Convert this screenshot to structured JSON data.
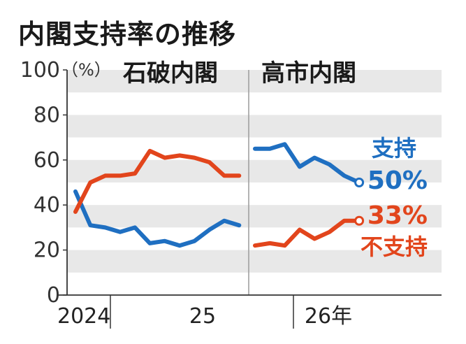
{
  "title": "内閣支持率の推移",
  "chart_data": {
    "type": "line",
    "unit": "（%）",
    "ylim": [
      0,
      100
    ],
    "y_ticks": [
      "0",
      "20",
      "40",
      "60",
      "80",
      "100"
    ],
    "x_labels": [
      "2024",
      "25",
      "26年"
    ],
    "periods": [
      "石破内閣",
      "高市内閣"
    ],
    "colors": {
      "support": "#1f6fc1",
      "oppose": "#e2451c",
      "band": "#e8e8e8"
    },
    "series": [
      {
        "name": "支持",
        "color": "#1f6fc1",
        "ishiba": [
          46,
          31,
          30,
          28,
          30,
          23,
          24,
          22,
          24,
          29,
          33,
          31
        ],
        "takaichi": [
          65,
          65,
          67,
          57,
          61,
          58,
          53,
          50
        ]
      },
      {
        "name": "不支持",
        "color": "#e2451c",
        "ishiba": [
          37,
          50,
          53,
          53,
          54,
          64,
          61,
          62,
          61,
          59,
          53,
          53
        ],
        "takaichi": [
          22,
          23,
          22,
          29,
          25,
          28,
          33,
          33
        ]
      }
    ],
    "end_labels": {
      "support_name": "支持",
      "support_value": "50%",
      "oppose_value": "33%",
      "oppose_name": "不支持"
    }
  }
}
